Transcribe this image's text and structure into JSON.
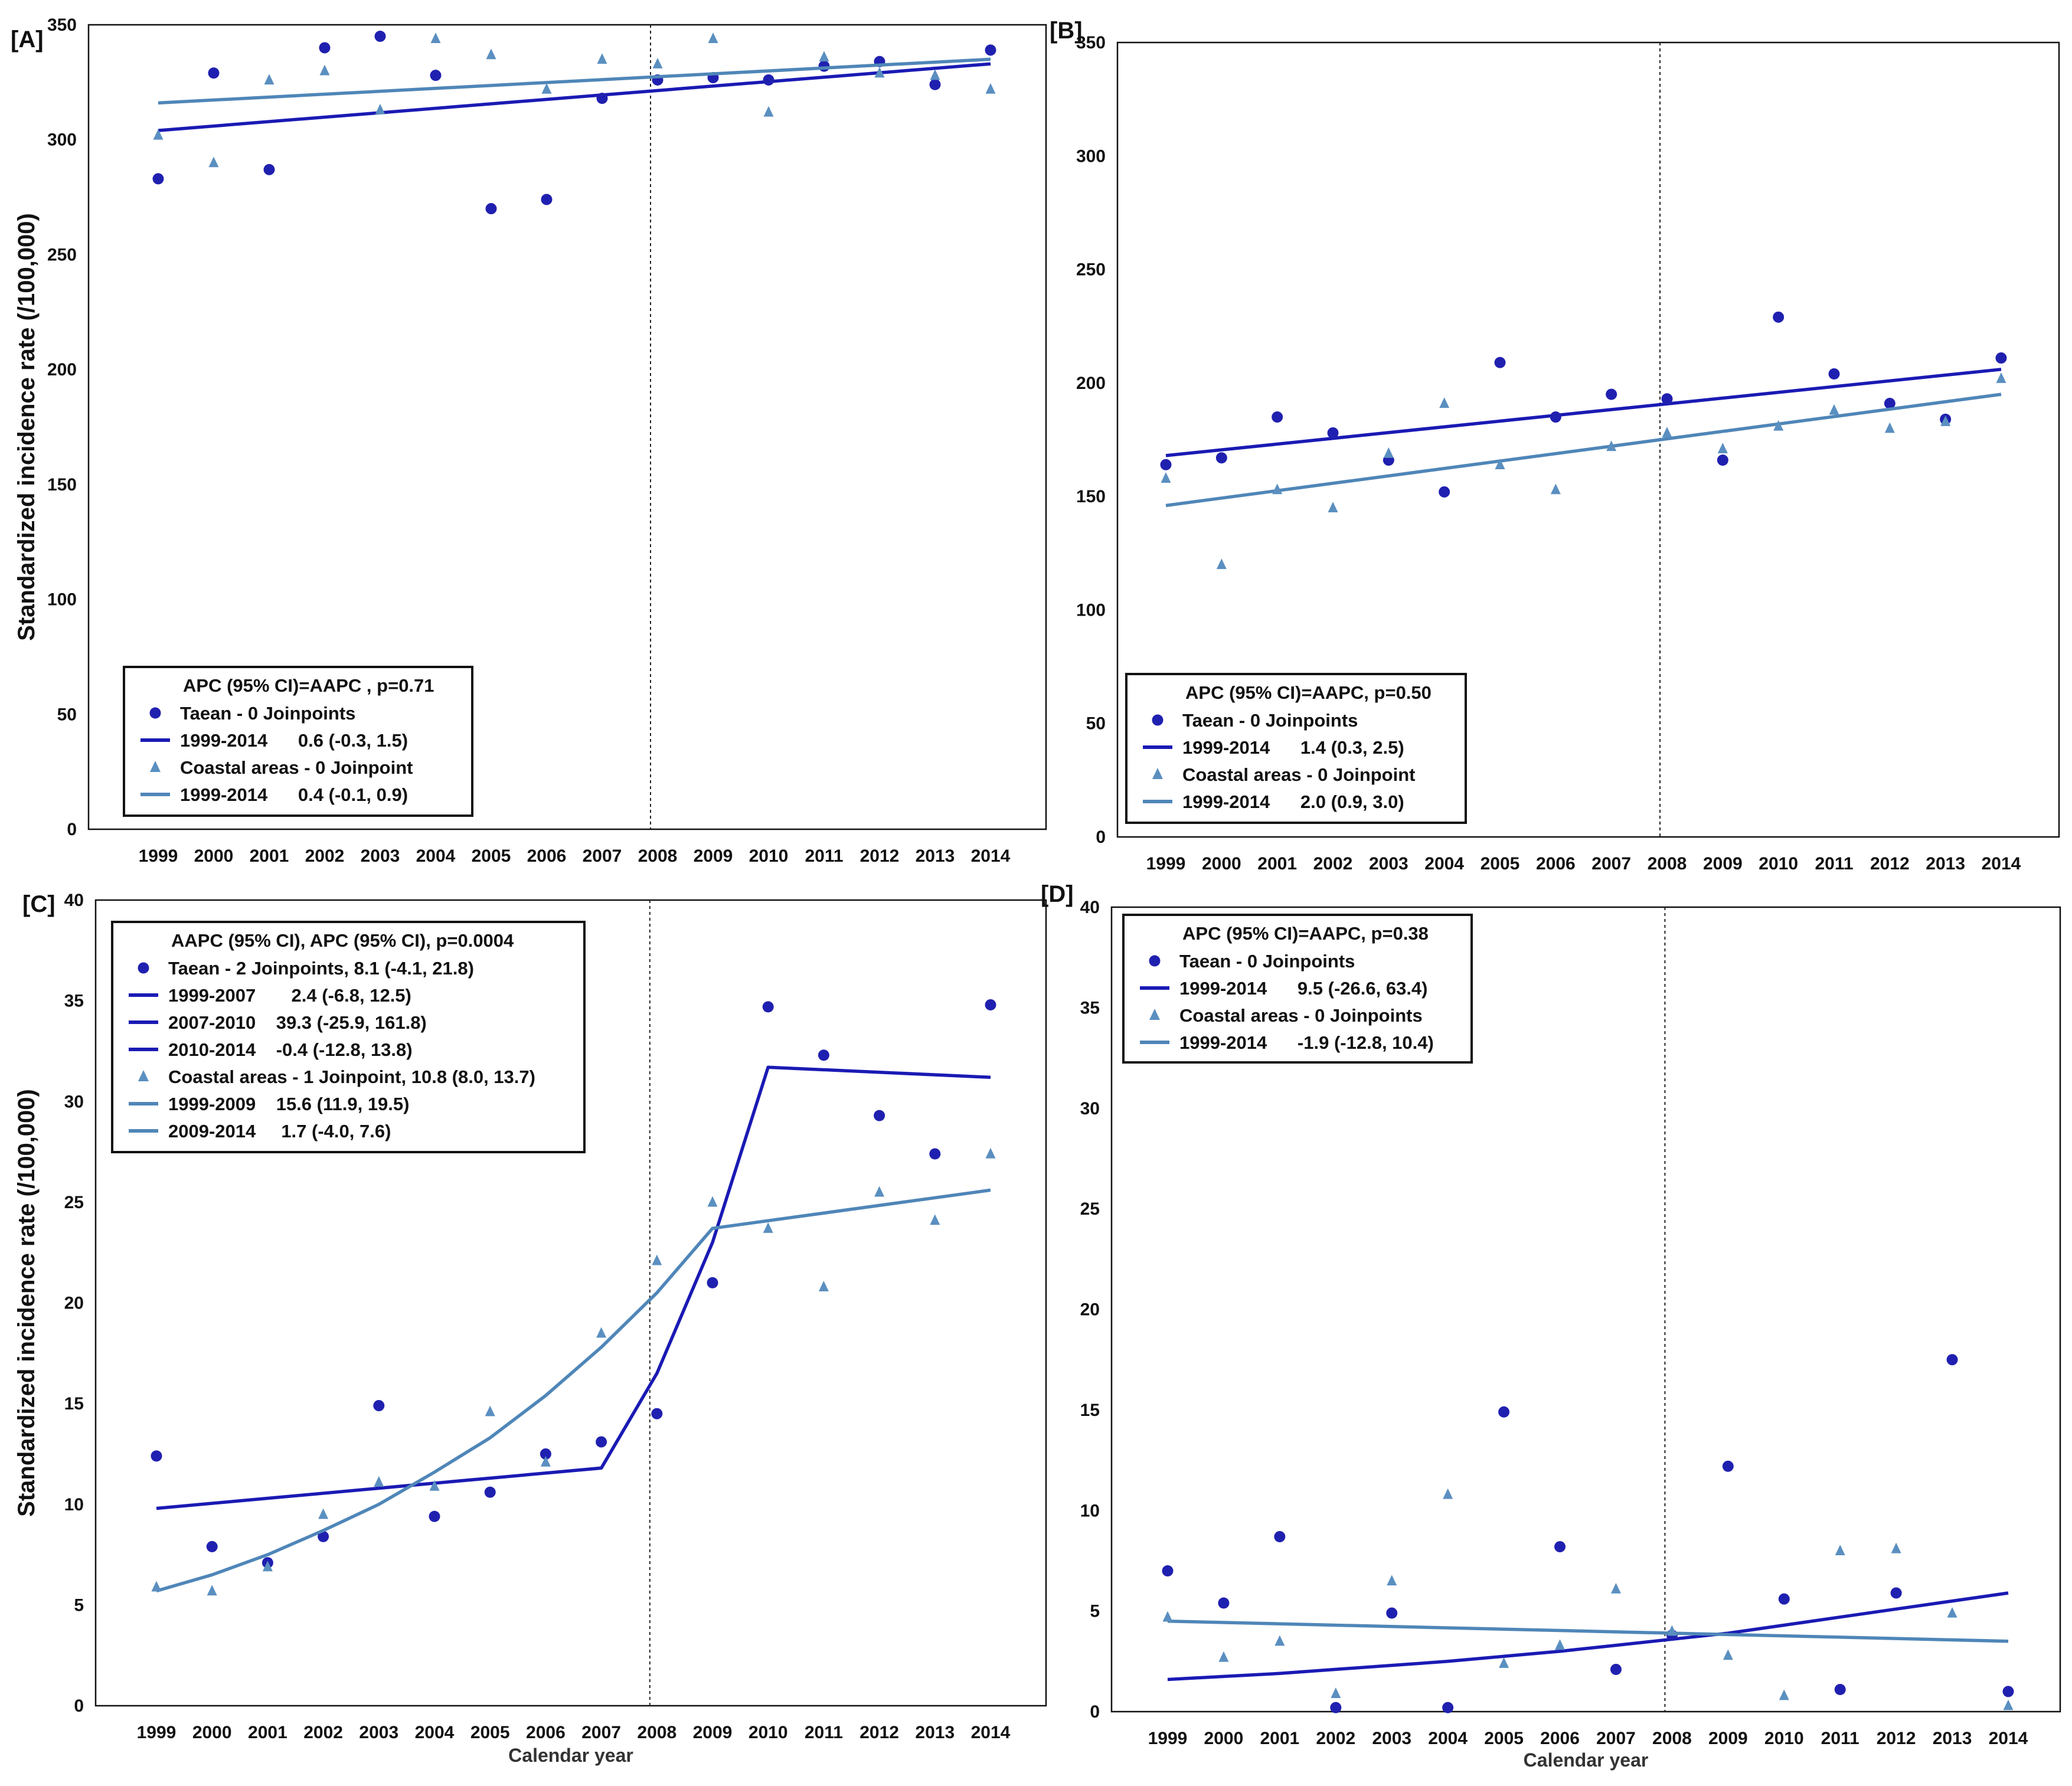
{
  "colors": {
    "taean": "#1a1ab4",
    "coastal": "#4f86b8",
    "axis": "#111111",
    "marker_taean": "#2020b0",
    "marker_coastal": "#5a8fc0"
  },
  "shared": {
    "ylabel": "Standardized  incidence  rate  (/100,000)",
    "xlabel": "Calendar year",
    "reference_year": 2008
  },
  "chart_data": [
    {
      "panel": "[A]",
      "type": "scatter",
      "x": [
        1999,
        2000,
        2001,
        2002,
        2003,
        2004,
        2005,
        2006,
        2007,
        2008,
        2009,
        2010,
        2011,
        2012,
        2013,
        2014
      ],
      "ylim": [
        0,
        350
      ],
      "yticks": [
        0,
        50,
        100,
        150,
        200,
        250,
        300,
        350
      ],
      "ylabel": "Standardized  incidence  rate  (/100,000)",
      "xlabel": "",
      "series": [
        {
          "name": "Taean",
          "marker": "circle",
          "values": [
            283,
            329,
            287,
            340,
            345,
            328,
            270,
            274,
            318,
            326,
            327,
            326,
            332,
            334,
            324,
            339
          ],
          "fit": [
            [
              1999,
              304
            ],
            [
              2014,
              333
            ]
          ]
        },
        {
          "name": "Coastal areas",
          "marker": "triangle",
          "values": [
            302,
            290,
            326,
            330,
            313,
            344,
            337,
            322,
            335,
            333,
            344,
            312,
            336,
            329,
            328,
            322
          ],
          "fit": [
            [
              1999,
              316
            ],
            [
              2014,
              335
            ]
          ]
        }
      ],
      "legend": {
        "position": "bottom-left",
        "header": "APC (95% CI)=AAPC , p=0.71",
        "entries": [
          {
            "kind": "point",
            "series": "Taean",
            "text": "Taean - 0 Joinpoints"
          },
          {
            "kind": "line",
            "series": "Taean",
            "text": "1999-2014      0.6 (-0.3, 1.5)"
          },
          {
            "kind": "point",
            "series": "Coastal areas",
            "text": "Coastal areas - 0 Joinpoint"
          },
          {
            "kind": "line",
            "series": "Coastal areas",
            "text": "1999-2014      0.4 (-0.1, 0.9)"
          }
        ]
      }
    },
    {
      "panel": "[B]",
      "type": "scatter",
      "x": [
        1999,
        2000,
        2001,
        2002,
        2003,
        2004,
        2005,
        2006,
        2007,
        2008,
        2009,
        2010,
        2011,
        2012,
        2013,
        2014
      ],
      "ylim": [
        0,
        350
      ],
      "yticks": [
        0,
        50,
        100,
        150,
        200,
        250,
        300,
        350
      ],
      "ylabel": "",
      "xlabel": "",
      "series": [
        {
          "name": "Taean",
          "marker": "circle",
          "values": [
            164,
            167,
            185,
            178,
            166,
            152,
            209,
            185,
            195,
            193,
            166,
            229,
            204,
            191,
            184,
            211
          ],
          "fit": [
            [
              1999,
              168
            ],
            [
              2014,
              206
            ]
          ]
        },
        {
          "name": "Coastal areas",
          "marker": "triangle",
          "values": [
            158,
            120,
            153,
            145,
            169,
            191,
            164,
            153,
            172,
            178,
            171,
            181,
            188,
            180,
            183,
            202
          ],
          "fit": [
            [
              1999,
              146
            ],
            [
              2014,
              195
            ]
          ]
        }
      ],
      "legend": {
        "position": "bottom-left",
        "header": "APC (95% CI)=AAPC, p=0.50",
        "entries": [
          {
            "kind": "point",
            "series": "Taean",
            "text": "Taean - 0 Joinpoints"
          },
          {
            "kind": "line",
            "series": "Taean",
            "text": "1999-2014      1.4 (0.3, 2.5)"
          },
          {
            "kind": "point",
            "series": "Coastal areas",
            "text": "Coastal areas - 0 Joinpoint"
          },
          {
            "kind": "line",
            "series": "Coastal areas",
            "text": "1999-2014      2.0 (0.9, 3.0)"
          }
        ]
      }
    },
    {
      "panel": "[C]",
      "type": "scatter",
      "x": [
        1999,
        2000,
        2001,
        2002,
        2003,
        2004,
        2005,
        2006,
        2007,
        2008,
        2009,
        2010,
        2011,
        2012,
        2013,
        2014
      ],
      "ylim": [
        0,
        40
      ],
      "yticks": [
        0,
        5,
        10,
        15,
        20,
        25,
        30,
        35,
        40
      ],
      "ylabel": "Standardized  incidence  rate  (/100,000)",
      "xlabel": "Calendar year",
      "series": [
        {
          "name": "Taean",
          "marker": "circle",
          "values": [
            12.4,
            7.9,
            7.1,
            8.4,
            14.9,
            9.4,
            10.6,
            12.5,
            13.1,
            14.5,
            21.0,
            34.7,
            32.3,
            29.3,
            27.4,
            34.8
          ],
          "fit": [
            [
              1999,
              9.8
            ],
            [
              2007,
              11.8
            ],
            [
              2008,
              16.5
            ],
            [
              2009,
              23.0
            ],
            [
              2010,
              31.7
            ],
            [
              2014,
              31.2
            ]
          ]
        },
        {
          "name": "Coastal areas",
          "marker": "triangle",
          "values": [
            5.9,
            5.7,
            6.9,
            9.5,
            11.1,
            10.9,
            14.6,
            12.1,
            18.5,
            22.1,
            25.0,
            23.7,
            20.8,
            25.5,
            24.1,
            27.4
          ],
          "fit": [
            [
              1999,
              5.7
            ],
            [
              2000,
              6.5
            ],
            [
              2001,
              7.5
            ],
            [
              2002,
              8.7
            ],
            [
              2003,
              10.0
            ],
            [
              2004,
              11.6
            ],
            [
              2005,
              13.3
            ],
            [
              2006,
              15.4
            ],
            [
              2007,
              17.8
            ],
            [
              2008,
              20.5
            ],
            [
              2009,
              23.7
            ],
            [
              2014,
              25.6
            ]
          ]
        }
      ],
      "legend": {
        "position": "top-left",
        "header": "AAPC (95% CI), APC (95% CI), p=0.0004",
        "entries": [
          {
            "kind": "point",
            "series": "Taean",
            "text": "Taean - 2 Joinpoints, 8.1 (-4.1, 21.8)"
          },
          {
            "kind": "line",
            "series": "Taean",
            "text": "1999-2007       2.4 (-6.8, 12.5)"
          },
          {
            "kind": "line",
            "series": "Taean",
            "text": "2007-2010    39.3 (-25.9, 161.8)"
          },
          {
            "kind": "line",
            "series": "Taean",
            "text": "2010-2014    -0.4 (-12.8, 13.8)"
          },
          {
            "kind": "point",
            "series": "Coastal areas",
            "text": "Coastal areas - 1 Joinpoint, 10.8 (8.0, 13.7)"
          },
          {
            "kind": "line",
            "series": "Coastal areas",
            "text": "1999-2009    15.6 (11.9, 19.5)"
          },
          {
            "kind": "line",
            "series": "Coastal areas",
            "text": "2009-2014     1.7 (-4.0, 7.6)"
          }
        ]
      }
    },
    {
      "panel": "[D]",
      "type": "scatter",
      "x": [
        1999,
        2000,
        2001,
        2002,
        2003,
        2004,
        2005,
        2006,
        2007,
        2008,
        2009,
        2010,
        2011,
        2012,
        2013,
        2014
      ],
      "ylim": [
        0,
        40
      ],
      "yticks": [
        0,
        5,
        10,
        15,
        20,
        25,
        30,
        35,
        40
      ],
      "ylabel": "",
      "xlabel": "Calendar year",
      "series": [
        {
          "name": "Taean",
          "marker": "circle",
          "values": [
            7.0,
            5.4,
            8.7,
            0.2,
            4.9,
            0.2,
            14.9,
            8.2,
            2.1,
            3.8,
            12.2,
            5.6,
            1.1,
            5.9,
            17.5,
            1.0
          ],
          "fit": [
            [
              1999,
              1.6
            ],
            [
              2000,
              1.75
            ],
            [
              2001,
              1.9
            ],
            [
              2002,
              2.1
            ],
            [
              2003,
              2.3
            ],
            [
              2004,
              2.5
            ],
            [
              2005,
              2.75
            ],
            [
              2006,
              3.0
            ],
            [
              2007,
              3.3
            ],
            [
              2008,
              3.6
            ],
            [
              2009,
              3.9
            ],
            [
              2010,
              4.3
            ],
            [
              2011,
              4.7
            ],
            [
              2012,
              5.1
            ],
            [
              2013,
              5.5
            ],
            [
              2014,
              5.9
            ]
          ]
        },
        {
          "name": "Coastal areas",
          "marker": "triangle",
          "values": [
            4.7,
            2.7,
            3.5,
            0.9,
            6.5,
            10.8,
            2.4,
            3.3,
            6.1,
            4.0,
            2.8,
            0.8,
            8.0,
            8.1,
            4.9,
            0.3
          ],
          "fit": [
            [
              1999,
              4.5
            ],
            [
              2014,
              3.5
            ]
          ]
        }
      ],
      "legend": {
        "position": "top-left",
        "header": "APC (95% CI)=AAPC, p=0.38",
        "entries": [
          {
            "kind": "point",
            "series": "Taean",
            "text": "Taean - 0 Joinpoints"
          },
          {
            "kind": "line",
            "series": "Taean",
            "text": "1999-2014      9.5 (-26.6, 63.4)"
          },
          {
            "kind": "point",
            "series": "Coastal areas",
            "text": "Coastal areas - 0 Joinpoints"
          },
          {
            "kind": "line",
            "series": "Coastal areas",
            "text": "1999-2014      -1.9 (-12.8, 10.4)"
          }
        ]
      }
    }
  ]
}
